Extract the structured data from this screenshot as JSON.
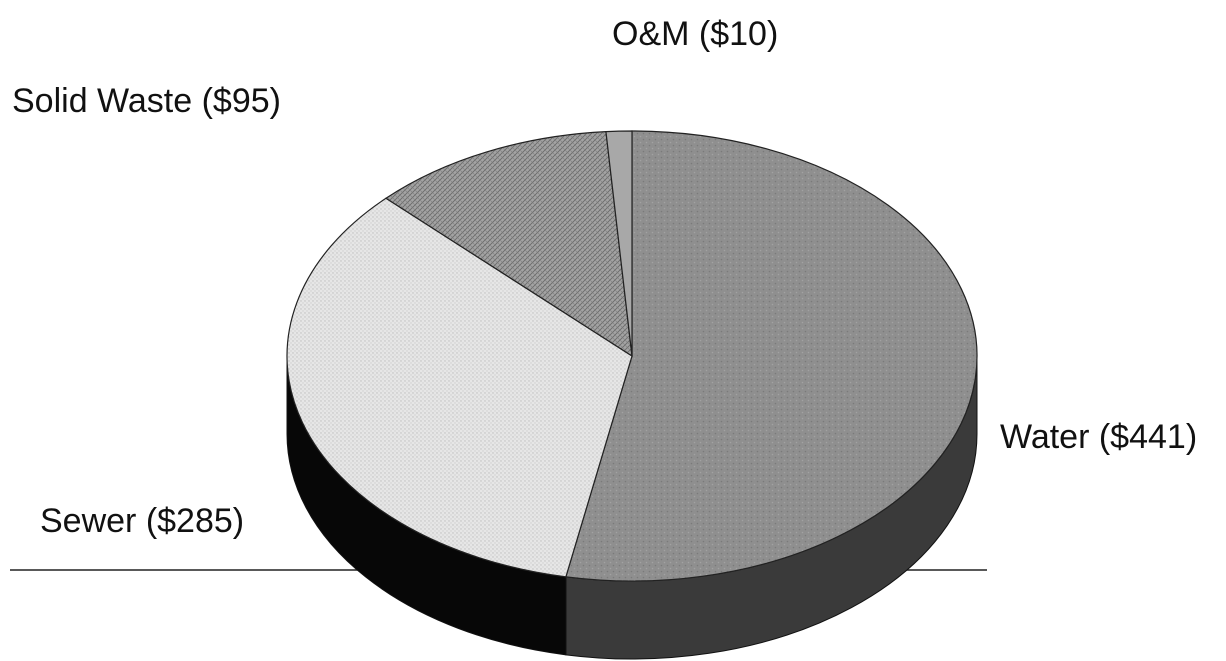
{
  "chart_data": {
    "type": "pie",
    "style": "3d",
    "title": "",
    "slices": [
      {
        "name": "Water",
        "label": "Water ($441)",
        "value": 441,
        "color": "#8f8f8f",
        "side_color": "#3a3a3a",
        "pattern": "stipple"
      },
      {
        "name": "Sewer",
        "label": "Sewer ($285)",
        "value": 285,
        "color": "#e4e4e4",
        "side_color": "#070707",
        "pattern": "dots"
      },
      {
        "name": "Solid Waste",
        "label": "Solid Waste ($95)",
        "value": 95,
        "color": "#9a9a9a",
        "side_color": "#222222",
        "pattern": "crosshatch"
      },
      {
        "name": "O&M",
        "label": "O&M ($10)",
        "value": 10,
        "color": "#a8a8a8",
        "side_color": "#333333",
        "pattern": "none"
      }
    ],
    "start_angle_deg": 0,
    "direction": "clockwise"
  }
}
